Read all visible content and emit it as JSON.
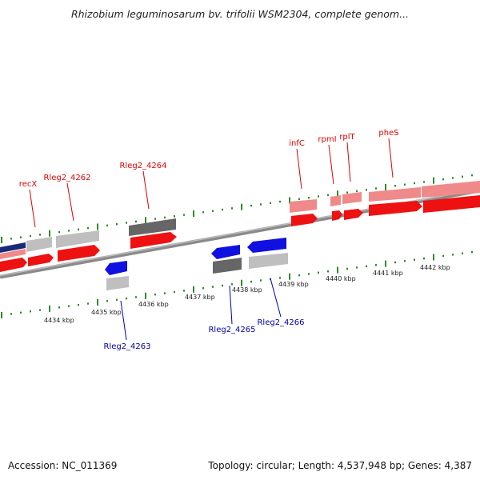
{
  "title": "Rhizobium leguminosarum bv. trifolii WSM2304, complete genom...",
  "footer": {
    "accession": "Accession: NC_011369",
    "summary": "Topology: circular; Length: 4,537,948 bp; Genes: 4,387"
  },
  "colors": {
    "feature_red": "#ee1111",
    "feature_pink": "#f08a8a",
    "feature_gray": "#bfbfbf",
    "feature_dark": "#666666",
    "feature_blue": "#1010e0",
    "feature_navy": "#1a2a7a",
    "tick_green": "#2a8a2a",
    "label_red": "#dd0000",
    "label_blue": "#0000aa"
  },
  "scale_labels": [
    "4434 kbp",
    "4435 kbp",
    "4436 kbp",
    "4437 kbp",
    "4438 kbp",
    "4439 kbp",
    "4440 kbp",
    "4441 kbp",
    "4442 kbp"
  ],
  "gene_labels": [
    {
      "text": "recX",
      "strand": "forward"
    },
    {
      "text": "Rleg2_4262",
      "strand": "forward"
    },
    {
      "text": "Rleg2_4264",
      "strand": "forward"
    },
    {
      "text": "infC",
      "strand": "forward"
    },
    {
      "text": "rpmI",
      "strand": "forward"
    },
    {
      "text": "rplT",
      "strand": "forward"
    },
    {
      "text": "pheS",
      "strand": "forward"
    },
    {
      "text": "Rleg2_4263",
      "strand": "reverse"
    },
    {
      "text": "Rleg2_4265",
      "strand": "reverse"
    },
    {
      "text": "Rleg2_4266",
      "strand": "reverse"
    }
  ]
}
